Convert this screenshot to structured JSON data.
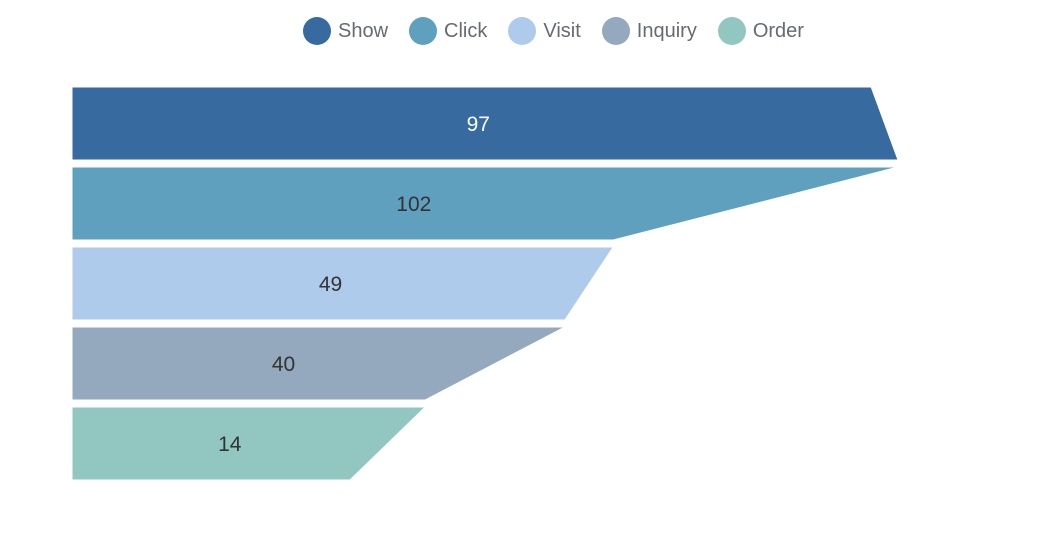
{
  "chart_data": {
    "type": "funnel",
    "title": "",
    "legend": [
      "Show",
      "Click",
      "Visit",
      "Inquiry",
      "Order"
    ],
    "series": [
      {
        "name": "Show",
        "value": 97,
        "color": "#376a9e",
        "label_color": "#ffffff"
      },
      {
        "name": "Click",
        "value": 102,
        "color": "#5fa0be",
        "label_color": "#333333"
      },
      {
        "name": "Visit",
        "value": 49,
        "color": "#aecbeb",
        "label_color": "#333333"
      },
      {
        "name": "Inquiry",
        "value": 40,
        "color": "#94a8be",
        "label_color": "#333333"
      },
      {
        "name": "Order",
        "value": 14,
        "color": "#92c7c1",
        "label_color": "#333333"
      }
    ],
    "value_labels": [
      "97",
      "102",
      "49",
      "40",
      "14"
    ],
    "legend_text_color": "#666b71",
    "background_color": "#ffffff",
    "separator_color": "#ffffff",
    "layout_hints": {
      "funnel_align": "left",
      "sort": "none",
      "legend_position": "top",
      "labels": "inside-centered"
    }
  }
}
